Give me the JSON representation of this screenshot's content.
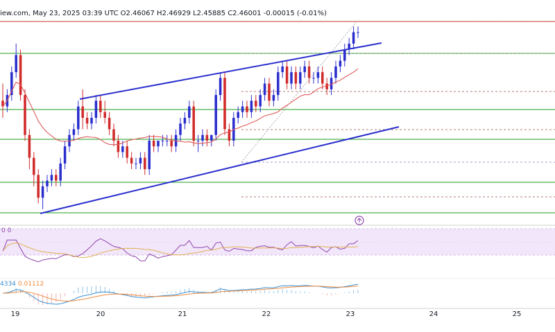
{
  "header": {
    "text": "iew.com, May 23, 2025 03:39 UTC  O2.46067  H2.46929  L2.45885  C2.46001  -0.00015 (-0.01%)"
  },
  "colors": {
    "bull": "#2a2ecd",
    "bear": "#d12a2a",
    "trendline": "#2a2ecd",
    "support_line": "#1e9e1e",
    "resistance_line": "#c0392b",
    "ma": "#e05a5a",
    "rsi": "#8e44ad",
    "rsi_ma": "#e0b050",
    "rsi_band": "#f2e6fa",
    "macd": "#3b8ed0",
    "signal": "#f08a3c"
  },
  "chart_data": {
    "type": "candlestick",
    "title": "",
    "x_axis": {
      "tick_labels": [
        "19",
        "20",
        "21",
        "22",
        "23",
        "24",
        "25"
      ]
    },
    "candles": [
      [
        2.4,
        2.43,
        2.37,
        2.39
      ],
      [
        2.39,
        2.42,
        2.38,
        2.41
      ],
      [
        2.41,
        2.46,
        2.4,
        2.45
      ],
      [
        2.45,
        2.5,
        2.44,
        2.48
      ],
      [
        2.48,
        2.49,
        2.4,
        2.41
      ],
      [
        2.41,
        2.42,
        2.33,
        2.34
      ],
      [
        2.34,
        2.35,
        2.28,
        2.3
      ],
      [
        2.3,
        2.31,
        2.25,
        2.27
      ],
      [
        2.27,
        2.28,
        2.22,
        2.23
      ],
      [
        2.23,
        2.26,
        2.21,
        2.25
      ],
      [
        2.25,
        2.27,
        2.24,
        2.26
      ],
      [
        2.26,
        2.28,
        2.25,
        2.27
      ],
      [
        2.27,
        2.28,
        2.25,
        2.26
      ],
      [
        2.26,
        2.3,
        2.25,
        2.29
      ],
      [
        2.29,
        2.33,
        2.28,
        2.32
      ],
      [
        2.32,
        2.35,
        2.31,
        2.34
      ],
      [
        2.34,
        2.36,
        2.33,
        2.35
      ],
      [
        2.35,
        2.4,
        2.34,
        2.39
      ],
      [
        2.39,
        2.42,
        2.35,
        2.37
      ],
      [
        2.37,
        2.38,
        2.35,
        2.36
      ],
      [
        2.36,
        2.38,
        2.35,
        2.37
      ],
      [
        2.37,
        2.41,
        2.36,
        2.4
      ],
      [
        2.4,
        2.41,
        2.37,
        2.38
      ],
      [
        2.38,
        2.4,
        2.36,
        2.37
      ],
      [
        2.37,
        2.38,
        2.34,
        2.35
      ],
      [
        2.35,
        2.36,
        2.32,
        2.33
      ],
      [
        2.33,
        2.34,
        2.3,
        2.31
      ],
      [
        2.31,
        2.33,
        2.3,
        2.32
      ],
      [
        2.32,
        2.33,
        2.29,
        2.3
      ],
      [
        2.3,
        2.31,
        2.28,
        2.29
      ],
      [
        2.29,
        2.3,
        2.28,
        2.29
      ],
      [
        2.29,
        2.31,
        2.28,
        2.3
      ],
      [
        2.3,
        2.31,
        2.27,
        2.28
      ],
      [
        2.28,
        2.34,
        2.27,
        2.33
      ],
      [
        2.33,
        2.34,
        2.31,
        2.32
      ],
      [
        2.32,
        2.33,
        2.31,
        2.33
      ],
      [
        2.33,
        2.34,
        2.32,
        2.33
      ],
      [
        2.33,
        2.34,
        2.32,
        2.33
      ],
      [
        2.33,
        2.34,
        2.31,
        2.32
      ],
      [
        2.32,
        2.35,
        2.31,
        2.34
      ],
      [
        2.34,
        2.37,
        2.33,
        2.36
      ],
      [
        2.36,
        2.38,
        2.35,
        2.37
      ],
      [
        2.37,
        2.4,
        2.36,
        2.39
      ],
      [
        2.39,
        2.4,
        2.32,
        2.33
      ],
      [
        2.33,
        2.34,
        2.31,
        2.33
      ],
      [
        2.33,
        2.35,
        2.32,
        2.34
      ],
      [
        2.34,
        2.35,
        2.32,
        2.33
      ],
      [
        2.33,
        2.34,
        2.32,
        2.34
      ],
      [
        2.34,
        2.42,
        2.33,
        2.41
      ],
      [
        2.41,
        2.45,
        2.4,
        2.44
      ],
      [
        2.44,
        2.45,
        2.34,
        2.35
      ],
      [
        2.35,
        2.36,
        2.32,
        2.33
      ],
      [
        2.33,
        2.38,
        2.32,
        2.37
      ],
      [
        2.37,
        2.39,
        2.36,
        2.38
      ],
      [
        2.38,
        2.4,
        2.37,
        2.39
      ],
      [
        2.39,
        2.4,
        2.37,
        2.38
      ],
      [
        2.38,
        2.41,
        2.37,
        2.4
      ],
      [
        2.4,
        2.41,
        2.38,
        2.39
      ],
      [
        2.39,
        2.42,
        2.38,
        2.41
      ],
      [
        2.41,
        2.44,
        2.4,
        2.43
      ],
      [
        2.43,
        2.44,
        2.39,
        2.4
      ],
      [
        2.4,
        2.42,
        2.39,
        2.41
      ],
      [
        2.41,
        2.46,
        2.4,
        2.45
      ],
      [
        2.45,
        2.47,
        2.44,
        2.46
      ],
      [
        2.46,
        2.47,
        2.42,
        2.43
      ],
      [
        2.43,
        2.46,
        2.42,
        2.45
      ],
      [
        2.45,
        2.46,
        2.42,
        2.43
      ],
      [
        2.43,
        2.46,
        2.42,
        2.45
      ],
      [
        2.45,
        2.47,
        2.44,
        2.46
      ],
      [
        2.46,
        2.47,
        2.43,
        2.44
      ],
      [
        2.44,
        2.45,
        2.43,
        2.44
      ],
      [
        2.44,
        2.46,
        2.43,
        2.45
      ],
      [
        2.45,
        2.46,
        2.42,
        2.43
      ],
      [
        2.43,
        2.44,
        2.41,
        2.42
      ],
      [
        2.42,
        2.45,
        2.41,
        2.44
      ],
      [
        2.44,
        2.47,
        2.43,
        2.46
      ],
      [
        2.46,
        2.48,
        2.45,
        2.47
      ],
      [
        2.47,
        2.5,
        2.46,
        2.49
      ],
      [
        2.49,
        2.51,
        2.48,
        2.5
      ],
      [
        2.5,
        2.53,
        2.49,
        2.52
      ],
      [
        2.52,
        2.53,
        2.51,
        2.52
      ]
    ]
  },
  "indicators": {
    "rsi_label": "0 0",
    "macd_label": "4334",
    "macd_value": "0.01112"
  }
}
